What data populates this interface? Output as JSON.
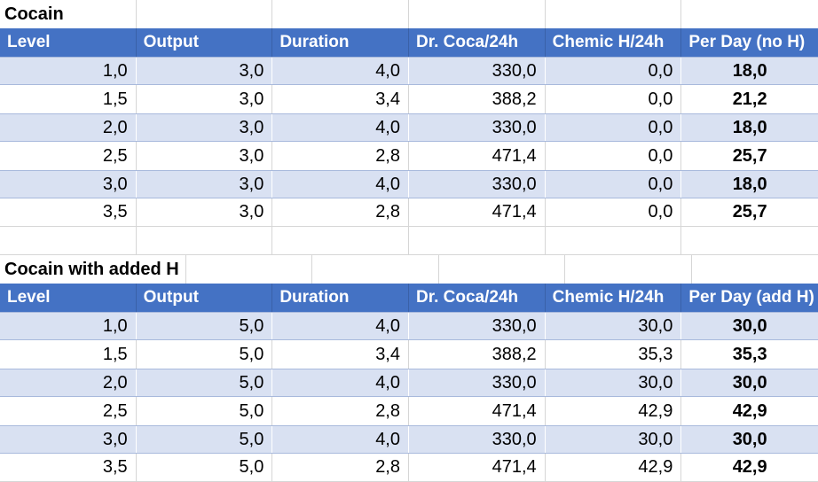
{
  "colors": {
    "header_bg": "#4472C4",
    "header_text": "#FFFFFF",
    "band_bg": "#D9E1F2",
    "band_border": "#A8B9DC",
    "gridline": "#D6D6D6",
    "text": "#000000"
  },
  "tables": [
    {
      "title": "Cocain",
      "columns": [
        "Level",
        "Output",
        "Duration",
        "Dr. Coca/24h",
        "Chemic H/24h",
        "Per Day (no H)"
      ],
      "rows": [
        [
          "1,0",
          "3,0",
          "4,0",
          "330,0",
          "0,0",
          "18,0"
        ],
        [
          "1,5",
          "3,0",
          "3,4",
          "388,2",
          "0,0",
          "21,2"
        ],
        [
          "2,0",
          "3,0",
          "4,0",
          "330,0",
          "0,0",
          "18,0"
        ],
        [
          "2,5",
          "3,0",
          "2,8",
          "471,4",
          "0,0",
          "25,7"
        ],
        [
          "3,0",
          "3,0",
          "4,0",
          "330,0",
          "0,0",
          "18,0"
        ],
        [
          "3,5",
          "3,0",
          "2,8",
          "471,4",
          "0,0",
          "25,7"
        ]
      ]
    },
    {
      "title": "Cocain with added H",
      "columns": [
        "Level",
        "Output",
        "Duration",
        "Dr. Coca/24h",
        "Chemic H/24h",
        "Per Day (add H)"
      ],
      "rows": [
        [
          "1,0",
          "5,0",
          "4,0",
          "330,0",
          "30,0",
          "30,0"
        ],
        [
          "1,5",
          "5,0",
          "3,4",
          "388,2",
          "35,3",
          "35,3"
        ],
        [
          "2,0",
          "5,0",
          "4,0",
          "330,0",
          "30,0",
          "30,0"
        ],
        [
          "2,5",
          "5,0",
          "2,8",
          "471,4",
          "42,9",
          "42,9"
        ],
        [
          "3,0",
          "5,0",
          "4,0",
          "330,0",
          "30,0",
          "30,0"
        ],
        [
          "3,5",
          "5,0",
          "2,8",
          "471,4",
          "42,9",
          "42,9"
        ]
      ]
    }
  ]
}
